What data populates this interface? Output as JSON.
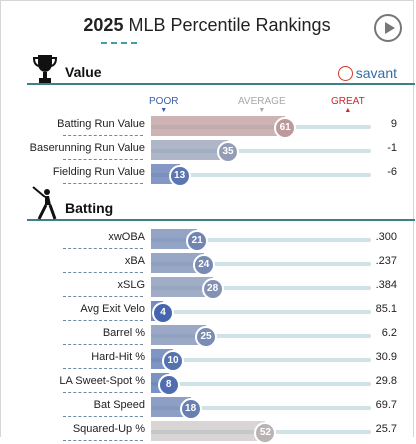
{
  "header": {
    "year": "2025",
    "title": "MLB Percentile Rankings"
  },
  "brand": {
    "label": "savant"
  },
  "sections": {
    "value": "Value",
    "batting": "Batting"
  },
  "scale": {
    "poor": "POOR",
    "average": "AVERAGE",
    "great": "GREAT"
  },
  "value_rows": [
    {
      "label": "Batting Run Value",
      "percentile": 61,
      "value": "9"
    },
    {
      "label": "Baserunning Run Value",
      "percentile": 35,
      "value": "-1"
    },
    {
      "label": "Fielding Run Value",
      "percentile": 13,
      "value": "-6"
    }
  ],
  "batting_rows": [
    {
      "label": "xwOBA",
      "percentile": 21,
      "value": ".300"
    },
    {
      "label": "xBA",
      "percentile": 24,
      "value": ".237"
    },
    {
      "label": "xSLG",
      "percentile": 28,
      "value": ".384"
    },
    {
      "label": "Avg Exit Velo",
      "percentile": 4,
      "value": "85.1"
    },
    {
      "label": "Barrel %",
      "percentile": 25,
      "value": "6.2"
    },
    {
      "label": "Hard-Hit %",
      "percentile": 10,
      "value": "30.9"
    },
    {
      "label": "LA Sweet-Spot %",
      "percentile": 8,
      "value": "29.8"
    },
    {
      "label": "Bat Speed",
      "percentile": 18,
      "value": "69.7"
    },
    {
      "label": "Squared-Up %",
      "percentile": 52,
      "value": "25.7"
    }
  ],
  "colors": {
    "poor": "#3b5fae",
    "average": "#b9b9b9",
    "great": "#c8272b",
    "accent": "#3f9fa3"
  }
}
